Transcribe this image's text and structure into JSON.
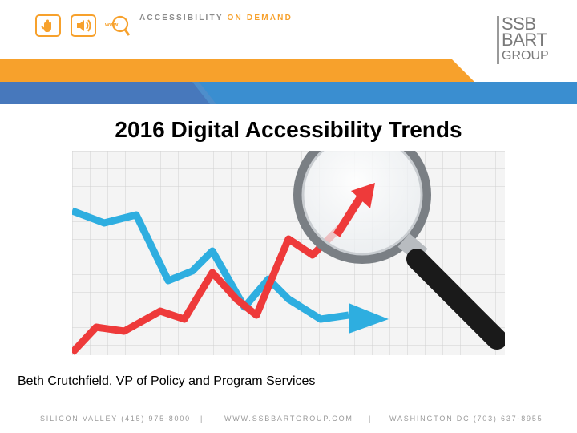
{
  "header": {
    "icons": [
      "hand-icon",
      "speaker-icon",
      "www-icon"
    ],
    "www_text": "www",
    "tagline_part1": "ACCESSIBILITY",
    "tagline_part2": "ON DEMAND"
  },
  "logo": {
    "line1": "SSB",
    "line2": "BART",
    "line3": "GROUP"
  },
  "slide": {
    "title": "2016 Digital Accessibility Trends",
    "subtitle": "Beth Crutchfield, VP of Policy and Program Services"
  },
  "footer": {
    "silicon_valley": "SILICON VALLEY (415) 975-8000",
    "separator": "|",
    "website": "WWW.SSBBARTGROUP.COM",
    "washington": "WASHINGTON DC (703) 637-8955"
  },
  "colors": {
    "orange": "#f7a12c",
    "blue": "#3a8ed0",
    "gray_text": "#8a8a8a",
    "red_line": "#ee3a3a",
    "blue_line": "#2eaee0"
  }
}
